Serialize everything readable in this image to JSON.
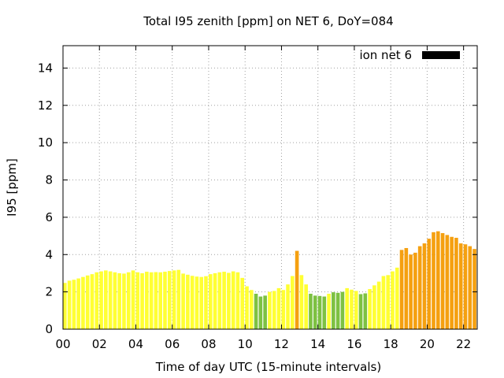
{
  "chart_data": {
    "type": "bar",
    "title": "Total I95 zenith [ppm] on NET 6, DoY=084",
    "xlabel": "Time of day UTC (15-minute intervals)",
    "ylabel": "I95 [ppm]",
    "xlim": [
      0,
      22.75
    ],
    "ylim": [
      0,
      15.2
    ],
    "x_ticks": [
      0,
      2,
      4,
      6,
      8,
      10,
      12,
      14,
      16,
      18,
      20,
      22
    ],
    "x_tick_labels": [
      "00",
      "02",
      "04",
      "06",
      "08",
      "10",
      "12",
      "14",
      "16",
      "18",
      "20",
      "22"
    ],
    "y_ticks": [
      0,
      2,
      4,
      6,
      8,
      10,
      12,
      14
    ],
    "y_tick_labels": [
      "0",
      "2",
      "4",
      "6",
      "8",
      "10",
      "12",
      "14"
    ],
    "grid": true,
    "legend": {
      "label": "ion net 6",
      "position": "top-right",
      "color": "#000000"
    },
    "colors": {
      "green": "#7dc142",
      "yellow": "#ffff33",
      "orange": "#f5a010"
    },
    "bar_width_hours": 0.2,
    "x_start": 0.1,
    "x_step": 0.25,
    "values": [
      2.48,
      2.6,
      2.65,
      2.72,
      2.8,
      2.88,
      2.95,
      3.05,
      3.1,
      3.15,
      3.1,
      3.05,
      3.0,
      2.98,
      3.05,
      3.15,
      3.05,
      3.0,
      3.08,
      3.05,
      3.06,
      3.05,
      3.08,
      3.12,
      3.15,
      3.18,
      2.98,
      2.92,
      2.86,
      2.82,
      2.8,
      2.84,
      2.95,
      3.0,
      3.05,
      3.08,
      3.02,
      3.1,
      3.05,
      2.75,
      2.3,
      2.1,
      1.9,
      1.75,
      1.8,
      2.0,
      2.05,
      2.2,
      2.1,
      2.4,
      2.85,
      4.2,
      2.9,
      2.4,
      1.9,
      1.8,
      1.78,
      1.75,
      1.9,
      1.98,
      1.95,
      2.0,
      2.2,
      2.12,
      2.05,
      1.88,
      1.92,
      2.15,
      2.35,
      2.55,
      2.85,
      2.9,
      3.1,
      3.3,
      4.25,
      4.35,
      4.0,
      4.1,
      4.45,
      4.6,
      4.85,
      5.2,
      5.25,
      5.15,
      5.05,
      4.95,
      4.9,
      4.6,
      4.55,
      4.45,
      4.3
    ],
    "bar_colors": [
      "yellow",
      "yellow",
      "yellow",
      "yellow",
      "yellow",
      "yellow",
      "yellow",
      "yellow",
      "yellow",
      "yellow",
      "yellow",
      "yellow",
      "yellow",
      "yellow",
      "yellow",
      "yellow",
      "yellow",
      "yellow",
      "yellow",
      "yellow",
      "yellow",
      "yellow",
      "yellow",
      "yellow",
      "yellow",
      "yellow",
      "yellow",
      "yellow",
      "yellow",
      "yellow",
      "yellow",
      "yellow",
      "yellow",
      "yellow",
      "yellow",
      "yellow",
      "yellow",
      "yellow",
      "yellow",
      "yellow",
      "yellow",
      "yellow",
      "green",
      "green",
      "green",
      "yellow",
      "yellow",
      "yellow",
      "yellow",
      "yellow",
      "yellow",
      "orange",
      "yellow",
      "yellow",
      "green",
      "green",
      "green",
      "green",
      "yellow",
      "green",
      "green",
      "green",
      "yellow",
      "yellow",
      "yellow",
      "green",
      "green",
      "yellow",
      "yellow",
      "yellow",
      "yellow",
      "yellow",
      "yellow",
      "yellow",
      "orange",
      "orange",
      "orange",
      "orange",
      "orange",
      "orange",
      "orange",
      "orange",
      "orange",
      "orange",
      "orange",
      "orange",
      "orange",
      "orange",
      "orange",
      "orange",
      "orange"
    ]
  }
}
